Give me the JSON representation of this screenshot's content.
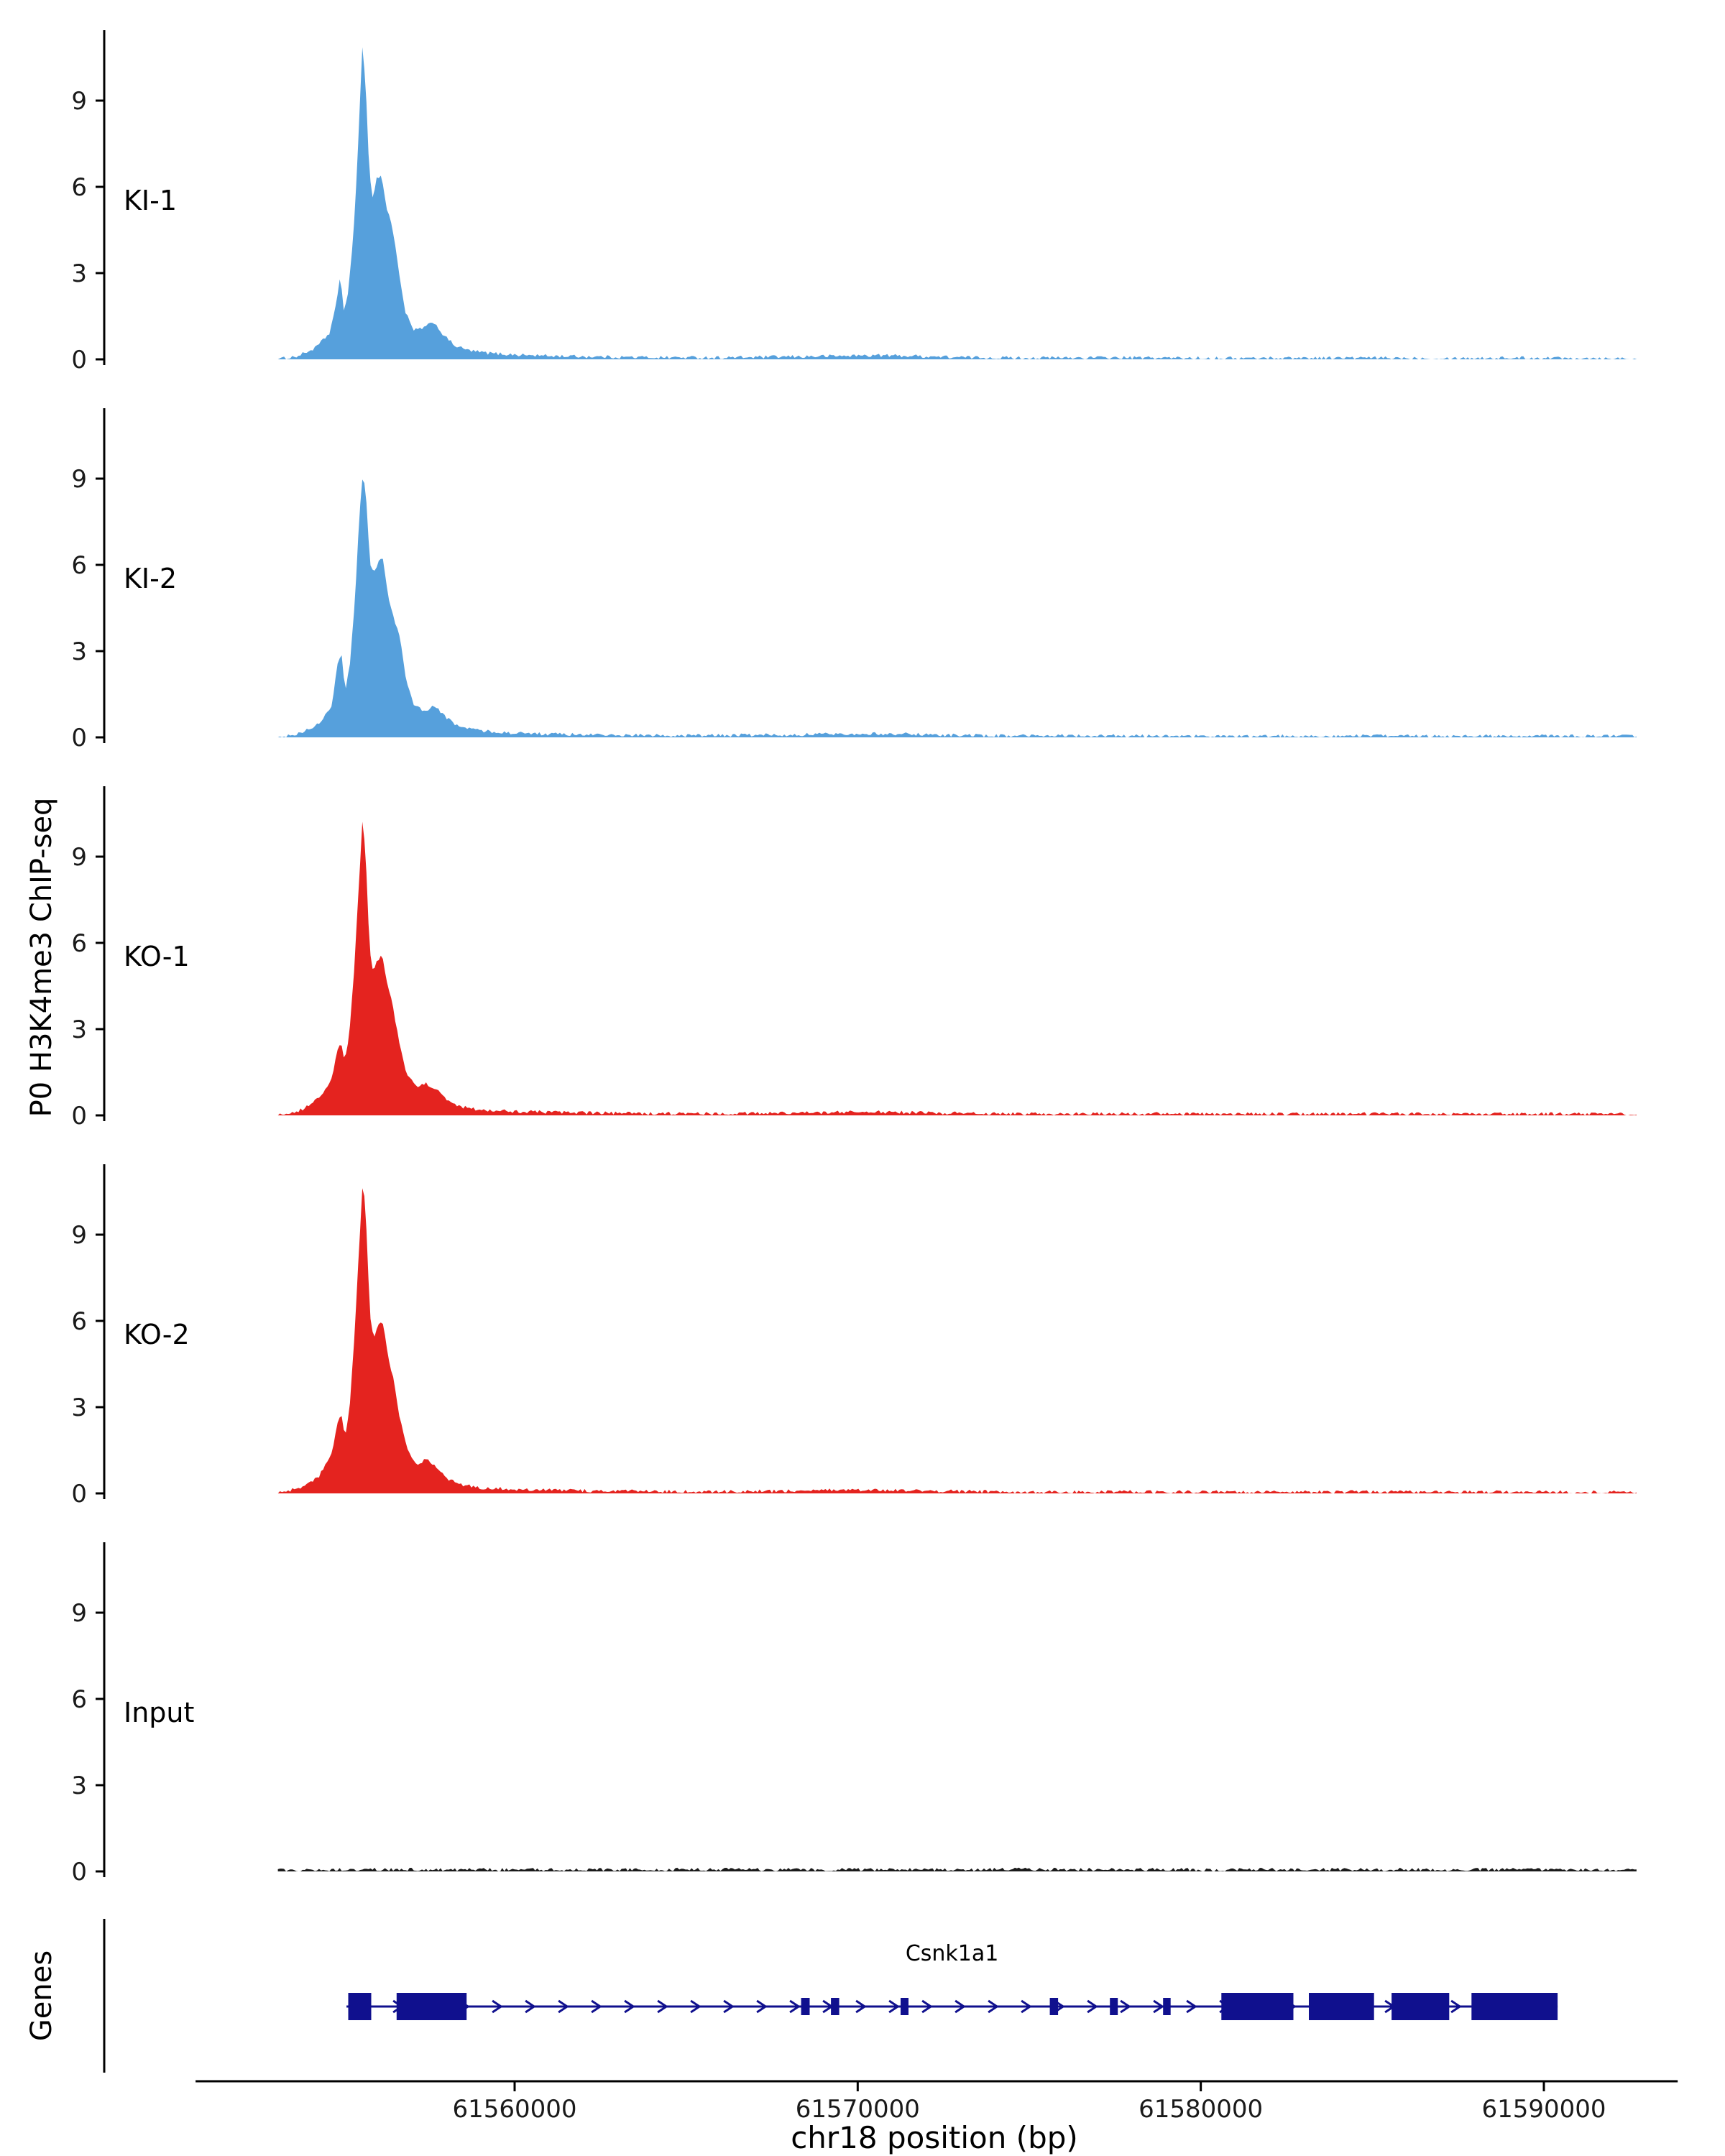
{
  "y_axis_label": "P0 H3K4me3 ChIP-seq",
  "genes_label": "Genes",
  "x_axis": {
    "title": "chr18 position (bp)",
    "ticks": [
      {
        "bp": 61560000,
        "label": "61560000"
      },
      {
        "bp": 61570000,
        "label": "61570000"
      },
      {
        "bp": 61580000,
        "label": "61580000"
      },
      {
        "bp": 61590000,
        "label": "61590000"
      }
    ]
  },
  "chart_data": {
    "type": "area",
    "title": "",
    "xlabel": "chr18 position (bp)",
    "ylabel": "P0 H3K4me3 ChIP-seq",
    "x_domain_bp": [
      61548000,
      61594000
    ],
    "data_extent_bp": [
      61553100,
      61592700
    ],
    "y_ticks": [
      0,
      3,
      6,
      9
    ],
    "ylim": [
      0,
      11.5
    ],
    "tracks": [
      {
        "name": "KI-1",
        "color": "#56A0DC",
        "noise": 0.06,
        "points": [
          [
            61553100,
            0
          ],
          [
            61553700,
            0.12
          ],
          [
            61554200,
            0.4
          ],
          [
            61554600,
            0.9
          ],
          [
            61554820,
            2.0
          ],
          [
            61554920,
            3.0
          ],
          [
            61555020,
            1.7
          ],
          [
            61555150,
            2.3
          ],
          [
            61555300,
            4.3
          ],
          [
            61555430,
            7.2
          ],
          [
            61555560,
            10.8
          ],
          [
            61555660,
            9.6
          ],
          [
            61555760,
            6.6
          ],
          [
            61555860,
            5.6
          ],
          [
            61555980,
            6.3
          ],
          [
            61556120,
            6.4
          ],
          [
            61556260,
            5.3
          ],
          [
            61556420,
            4.7
          ],
          [
            61556600,
            3.3
          ],
          [
            61556800,
            1.7
          ],
          [
            61557050,
            1.0
          ],
          [
            61557350,
            1.1
          ],
          [
            61557650,
            1.3
          ],
          [
            61557950,
            0.8
          ],
          [
            61558300,
            0.45
          ],
          [
            61558700,
            0.3
          ],
          [
            61559200,
            0.22
          ],
          [
            61560000,
            0.16
          ],
          [
            61561000,
            0.12
          ],
          [
            61562500,
            0.09
          ],
          [
            61564000,
            0.07
          ],
          [
            61566000,
            0.06
          ],
          [
            61568000,
            0.09
          ],
          [
            61569500,
            0.12
          ],
          [
            61570500,
            0.14
          ],
          [
            61571500,
            0.12
          ],
          [
            61573000,
            0.07
          ],
          [
            61575000,
            0.05
          ],
          [
            61577000,
            0.06
          ],
          [
            61579000,
            0.05
          ],
          [
            61581000,
            0.04
          ],
          [
            61583000,
            0.05
          ],
          [
            61585000,
            0.05
          ],
          [
            61587000,
            0.04
          ],
          [
            61589000,
            0.05
          ],
          [
            61591000,
            0.05
          ],
          [
            61592700,
            0.03
          ]
        ]
      },
      {
        "name": "KI-2",
        "color": "#56A0DC",
        "noise": 0.06,
        "points": [
          [
            61553100,
            0
          ],
          [
            61553800,
            0.15
          ],
          [
            61554300,
            0.5
          ],
          [
            61554650,
            1.0
          ],
          [
            61554850,
            2.6
          ],
          [
            61554960,
            2.9
          ],
          [
            61555060,
            1.6
          ],
          [
            61555200,
            2.6
          ],
          [
            61555350,
            4.8
          ],
          [
            61555480,
            7.8
          ],
          [
            61555580,
            9.2
          ],
          [
            61555680,
            8.2
          ],
          [
            61555780,
            6.0
          ],
          [
            61555900,
            5.7
          ],
          [
            61556020,
            6.1
          ],
          [
            61556160,
            6.2
          ],
          [
            61556300,
            5.0
          ],
          [
            61556460,
            4.2
          ],
          [
            61556640,
            3.6
          ],
          [
            61556840,
            2.0
          ],
          [
            61557080,
            1.1
          ],
          [
            61557380,
            0.9
          ],
          [
            61557680,
            1.1
          ],
          [
            61557980,
            0.7
          ],
          [
            61558350,
            0.4
          ],
          [
            61558800,
            0.28
          ],
          [
            61559300,
            0.2
          ],
          [
            61560000,
            0.15
          ],
          [
            61561500,
            0.1
          ],
          [
            61563000,
            0.08
          ],
          [
            61565000,
            0.06
          ],
          [
            61567000,
            0.08
          ],
          [
            61568500,
            0.1
          ],
          [
            61570000,
            0.13
          ],
          [
            61571200,
            0.12
          ],
          [
            61572500,
            0.08
          ],
          [
            61574500,
            0.05
          ],
          [
            61576500,
            0.06
          ],
          [
            61578500,
            0.05
          ],
          [
            61580500,
            0.04
          ],
          [
            61582500,
            0.05
          ],
          [
            61584500,
            0.05
          ],
          [
            61586500,
            0.04
          ],
          [
            61588500,
            0.05
          ],
          [
            61590500,
            0.05
          ],
          [
            61592700,
            0.03
          ]
        ]
      },
      {
        "name": "KO-1",
        "color": "#E4231F",
        "noise": 0.06,
        "points": [
          [
            61553100,
            0
          ],
          [
            61553800,
            0.2
          ],
          [
            61554300,
            0.6
          ],
          [
            61554650,
            1.2
          ],
          [
            61554830,
            2.2
          ],
          [
            61554940,
            2.6
          ],
          [
            61555040,
            1.8
          ],
          [
            61555180,
            2.8
          ],
          [
            61555320,
            5.0
          ],
          [
            61555460,
            8.0
          ],
          [
            61555570,
            10.4
          ],
          [
            61555670,
            8.8
          ],
          [
            61555770,
            5.8
          ],
          [
            61555880,
            5.0
          ],
          [
            61556000,
            5.4
          ],
          [
            61556140,
            5.6
          ],
          [
            61556280,
            4.6
          ],
          [
            61556450,
            3.8
          ],
          [
            61556650,
            2.4
          ],
          [
            61556870,
            1.4
          ],
          [
            61557120,
            1.0
          ],
          [
            61557420,
            1.1
          ],
          [
            61557720,
            0.9
          ],
          [
            61558050,
            0.5
          ],
          [
            61558450,
            0.3
          ],
          [
            61559000,
            0.2
          ],
          [
            61560000,
            0.14
          ],
          [
            61561500,
            0.1
          ],
          [
            61563500,
            0.07
          ],
          [
            61565500,
            0.06
          ],
          [
            61567500,
            0.08
          ],
          [
            61569000,
            0.1
          ],
          [
            61570500,
            0.12
          ],
          [
            61572000,
            0.09
          ],
          [
            61574000,
            0.06
          ],
          [
            61576000,
            0.05
          ],
          [
            61578000,
            0.06
          ],
          [
            61580000,
            0.05
          ],
          [
            61582000,
            0.05
          ],
          [
            61584000,
            0.06
          ],
          [
            61586000,
            0.05
          ],
          [
            61588000,
            0.04
          ],
          [
            61590000,
            0.05
          ],
          [
            61592700,
            0.04
          ]
        ]
      },
      {
        "name": "KO-2",
        "color": "#E4231F",
        "noise": 0.06,
        "points": [
          [
            61553100,
            0
          ],
          [
            61553800,
            0.2
          ],
          [
            61554300,
            0.6
          ],
          [
            61554650,
            1.3
          ],
          [
            61554840,
            2.4
          ],
          [
            61554950,
            2.8
          ],
          [
            61555050,
            1.9
          ],
          [
            61555190,
            3.0
          ],
          [
            61555330,
            5.4
          ],
          [
            61555470,
            8.6
          ],
          [
            61555580,
            11.0
          ],
          [
            61555680,
            9.2
          ],
          [
            61555780,
            6.2
          ],
          [
            61555890,
            5.4
          ],
          [
            61556010,
            5.8
          ],
          [
            61556150,
            6.0
          ],
          [
            61556290,
            4.9
          ],
          [
            61556460,
            4.0
          ],
          [
            61556660,
            2.6
          ],
          [
            61556880,
            1.5
          ],
          [
            61557130,
            1.0
          ],
          [
            61557430,
            1.2
          ],
          [
            61557730,
            0.9
          ],
          [
            61558060,
            0.5
          ],
          [
            61558460,
            0.3
          ],
          [
            61559000,
            0.2
          ],
          [
            61560000,
            0.15
          ],
          [
            61561500,
            0.1
          ],
          [
            61563500,
            0.08
          ],
          [
            61565500,
            0.06
          ],
          [
            61567500,
            0.08
          ],
          [
            61569000,
            0.11
          ],
          [
            61570500,
            0.12
          ],
          [
            61572000,
            0.09
          ],
          [
            61574000,
            0.06
          ],
          [
            61576000,
            0.05
          ],
          [
            61578000,
            0.06
          ],
          [
            61580000,
            0.05
          ],
          [
            61582000,
            0.05
          ],
          [
            61584000,
            0.06
          ],
          [
            61586000,
            0.05
          ],
          [
            61588000,
            0.05
          ],
          [
            61590000,
            0.05
          ],
          [
            61592700,
            0.04
          ]
        ]
      },
      {
        "name": "Input",
        "color": "#1A1A1A",
        "noise": 0.06,
        "points": [
          [
            61553100,
            0.05
          ],
          [
            61556000,
            0.07
          ],
          [
            61560000,
            0.06
          ],
          [
            61565000,
            0.07
          ],
          [
            61570000,
            0.06
          ],
          [
            61575000,
            0.07
          ],
          [
            61580000,
            0.06
          ],
          [
            61585000,
            0.07
          ],
          [
            61590000,
            0.06
          ],
          [
            61592700,
            0.05
          ]
        ]
      }
    ],
    "gene": {
      "name": "Csnk1a1",
      "color": "#10108E",
      "start": 61555100,
      "end": 61590400,
      "strand": "+",
      "exons": [
        {
          "start": 61555150,
          "end": 61555820,
          "type": "tall"
        },
        {
          "start": 61556560,
          "end": 61558600,
          "type": "tall"
        },
        {
          "start": 61568350,
          "end": 61568600,
          "type": "thin"
        },
        {
          "start": 61569220,
          "end": 61569460,
          "type": "thin"
        },
        {
          "start": 61571250,
          "end": 61571480,
          "type": "thin"
        },
        {
          "start": 61575600,
          "end": 61575840,
          "type": "thin"
        },
        {
          "start": 61577350,
          "end": 61577580,
          "type": "thin"
        },
        {
          "start": 61578900,
          "end": 61579120,
          "type": "thin"
        },
        {
          "start": 61580600,
          "end": 61582700,
          "type": "tall"
        },
        {
          "start": 61583150,
          "end": 61585050,
          "type": "tall"
        },
        {
          "start": 61585560,
          "end": 61587240,
          "type": "tall"
        },
        {
          "start": 61587890,
          "end": 61590400,
          "type": "tall"
        }
      ]
    }
  }
}
